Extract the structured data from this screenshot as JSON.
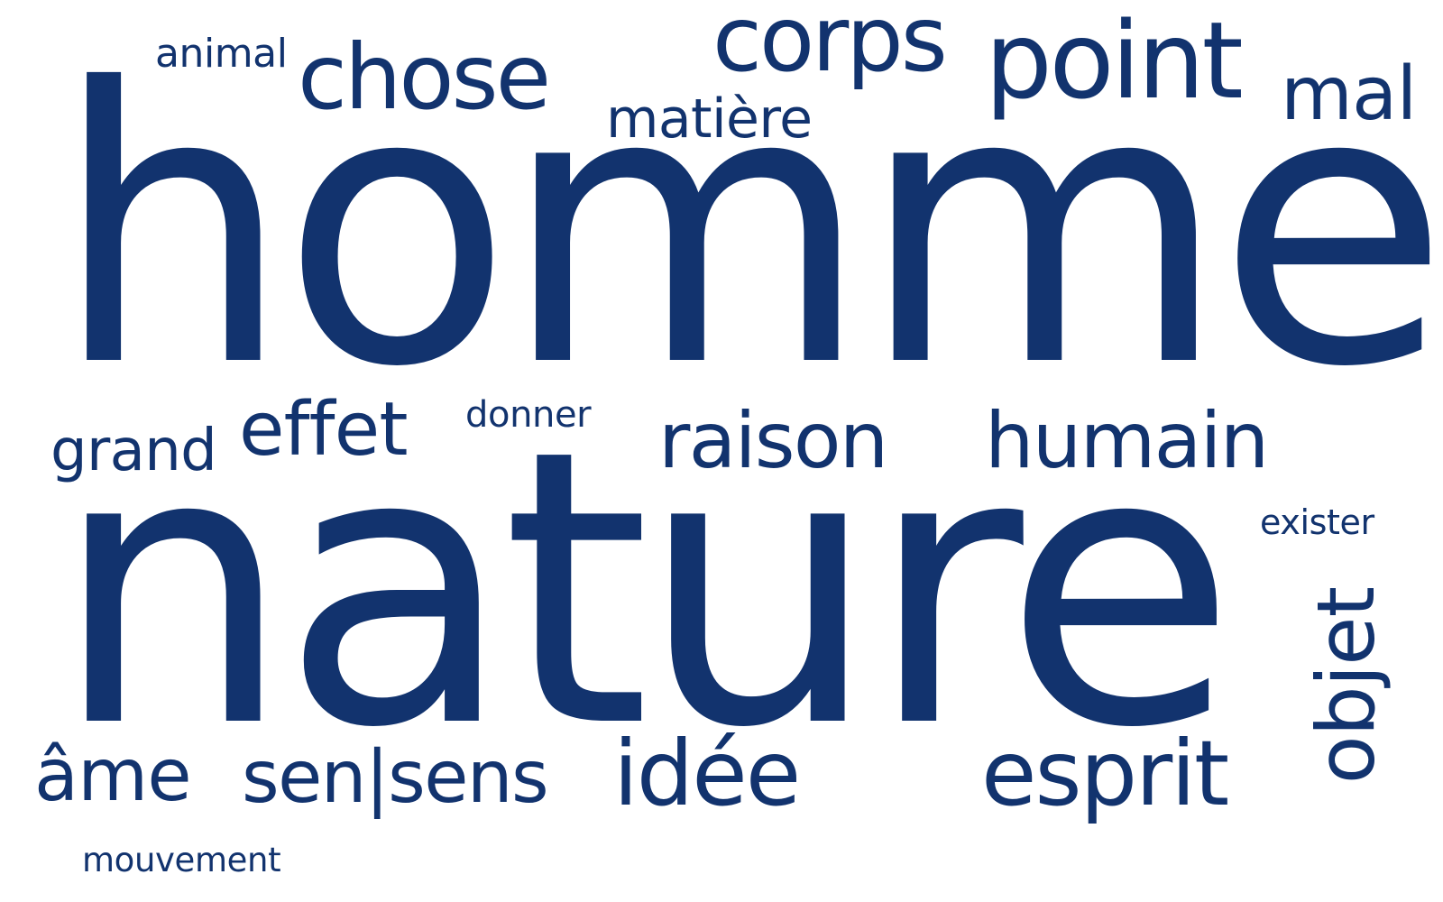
{
  "cloud": {
    "color": "#12336e",
    "words": {
      "homme": "homme",
      "nature": "nature",
      "animal": "animal",
      "chose": "chose",
      "matiere": "matière",
      "corps": "corps",
      "point": "point",
      "mal": "mal",
      "grand": "grand",
      "effet": "effet",
      "donner": "donner",
      "raison": "raison",
      "humain": "humain",
      "exister": "exister",
      "objet": "objet",
      "ame": "âme",
      "sen_sens": "sen|sens",
      "idee": "idée",
      "esprit": "esprit",
      "mouvement": "mouvement"
    }
  }
}
